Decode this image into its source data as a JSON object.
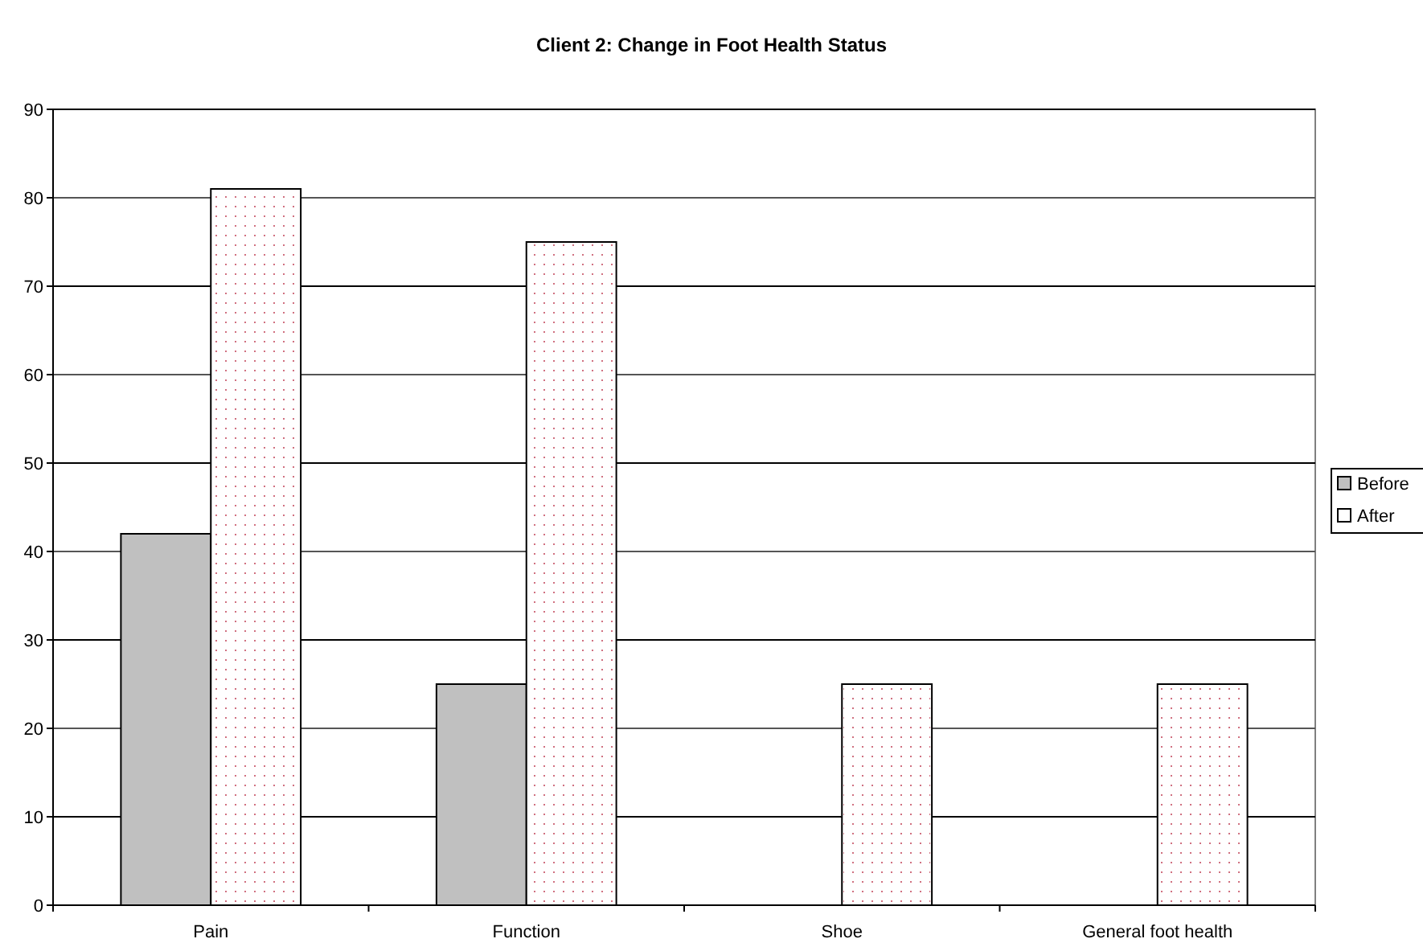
{
  "chart_data": {
    "type": "bar",
    "title": "Client 2: Change in Foot Health Status",
    "categories": [
      "Pain",
      "Function",
      "Shoe",
      "General foot health"
    ],
    "series": [
      {
        "name": "Before",
        "color": "#c0c0c0",
        "values": [
          42,
          25,
          0,
          0
        ]
      },
      {
        "name": "After",
        "color": "#ffffff",
        "values": [
          81,
          75,
          25,
          25
        ]
      }
    ],
    "ylim": [
      0,
      90
    ],
    "yticks": [
      0,
      10,
      20,
      30,
      40,
      50,
      60,
      70,
      80,
      90
    ],
    "grid": "y",
    "legend": "right"
  }
}
